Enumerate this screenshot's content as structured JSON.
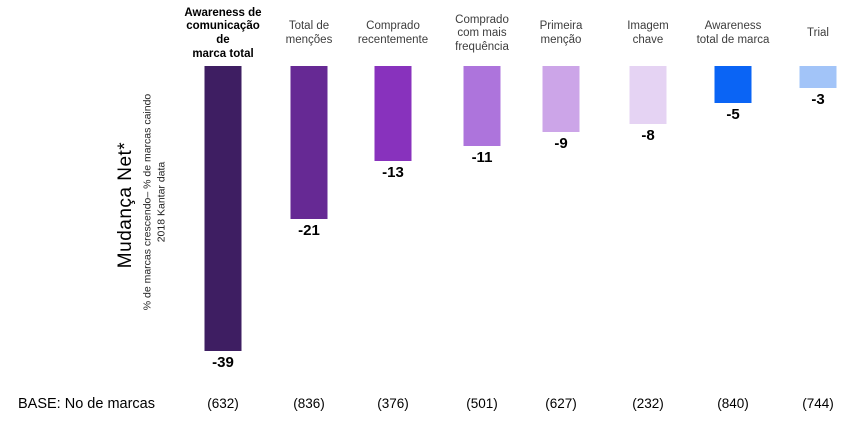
{
  "chart": {
    "y_axis_title": "Mudança Net*",
    "y_axis_subtitle_line1": "% de marcas crescendo– % de marcas caindo",
    "y_axis_subtitle_line2": "2018 Kantar data",
    "base_row_label": "BASE: No de marcas"
  },
  "chart_data": {
    "type": "bar",
    "orientation": "vertical-downward",
    "title": "Mudança Net*",
    "subtitle": "% de marcas crescendo– % de marcas caindo / 2018 Kantar data",
    "categories": [
      "Awareness de\ncomunicação de\nmarca total",
      "Total de\nmenções",
      "Comprado\nrecentemente",
      "Comprado\ncom mais\nfrequência",
      "Primeira\nmenção",
      "Imagem\nchave",
      "Awareness\ntotal de marca",
      "Trial"
    ],
    "values": [
      -39,
      -21,
      -13,
      -11,
      -9,
      -8,
      -5,
      -3
    ],
    "bases": [
      "(632)",
      "(836)",
      "(376)",
      "(501)",
      "(627)",
      "(232)",
      "(840)",
      "(744)"
    ],
    "colors": [
      "#3e1e62",
      "#662994",
      "#8832bd",
      "#ad74dc",
      "#cca5e8",
      "#e5d3f3",
      "#0a64f5",
      "#a2c4f8"
    ],
    "bold_category_index": 0,
    "ylim": [
      -40,
      0
    ],
    "grid": false,
    "legend": "none",
    "data_labels": "below-bar",
    "base_row_label": "BASE: No de marcas"
  }
}
